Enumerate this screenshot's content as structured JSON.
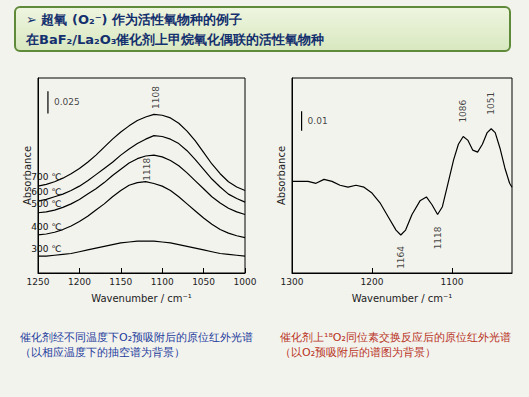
{
  "slide_title": [
    "➢ 超氧 (O₂⁻) 作为活性氧物种的例子",
    "在BaF₂/La₂O₃催化剂上甲烷氧化偶联的活性氧物种"
  ],
  "chart_data": [
    {
      "type": "line",
      "x_label": "Wavenumber / cm⁻¹",
      "y_label": "Absorbance",
      "xlim": [
        1250,
        1000
      ],
      "xticks": [
        1250,
        1200,
        1150,
        1100,
        1050,
        1000
      ],
      "ylim": [
        0,
        0.22
      ],
      "tick_labels": "x",
      "color": "#000000",
      "x": [
        1250,
        1240,
        1230,
        1220,
        1210,
        1200,
        1190,
        1180,
        1170,
        1160,
        1150,
        1140,
        1130,
        1120,
        1110,
        1100,
        1090,
        1080,
        1070,
        1060,
        1050,
        1040,
        1030,
        1020,
        1010,
        1000
      ],
      "series": [
        {
          "name": "700 ℃",
          "values": [
            0.098,
            0.1,
            0.103,
            0.107,
            0.112,
            0.118,
            0.125,
            0.133,
            0.142,
            0.151,
            0.159,
            0.166,
            0.172,
            0.176,
            0.179,
            0.178,
            0.175,
            0.169,
            0.16,
            0.149,
            0.136,
            0.123,
            0.112,
            0.103,
            0.097,
            0.093
          ]
        },
        {
          "name": "600 ℃",
          "values": [
            0.081,
            0.083,
            0.086,
            0.089,
            0.093,
            0.098,
            0.104,
            0.111,
            0.118,
            0.125,
            0.133,
            0.14,
            0.146,
            0.151,
            0.155,
            0.154,
            0.151,
            0.146,
            0.138,
            0.128,
            0.117,
            0.106,
            0.097,
            0.089,
            0.084,
            0.08
          ]
        },
        {
          "name": "500 ℃",
          "values": [
            0.068,
            0.069,
            0.071,
            0.074,
            0.078,
            0.083,
            0.089,
            0.095,
            0.102,
            0.11,
            0.117,
            0.124,
            0.129,
            0.132,
            0.133,
            0.131,
            0.127,
            0.121,
            0.113,
            0.104,
            0.095,
            0.086,
            0.079,
            0.073,
            0.069,
            0.066
          ]
        },
        {
          "name": "400 ℃",
          "values": [
            0.043,
            0.044,
            0.046,
            0.049,
            0.053,
            0.058,
            0.064,
            0.071,
            0.078,
            0.086,
            0.093,
            0.099,
            0.102,
            0.103,
            0.101,
            0.098,
            0.093,
            0.086,
            0.078,
            0.07,
            0.062,
            0.055,
            0.049,
            0.045,
            0.042,
            0.04
          ]
        },
        {
          "name": "300 ℃",
          "values": [
            0.019,
            0.019,
            0.02,
            0.021,
            0.022,
            0.024,
            0.026,
            0.028,
            0.03,
            0.032,
            0.034,
            0.035,
            0.036,
            0.036,
            0.036,
            0.035,
            0.034,
            0.032,
            0.03,
            0.028,
            0.026,
            0.024,
            0.022,
            0.021,
            0.02,
            0.019
          ]
        }
      ],
      "annotations": [
        {
          "label": "1108",
          "x": 1108,
          "y": 0.198
        },
        {
          "label": "1118",
          "x": 1118,
          "y": 0.117
        }
      ],
      "scale_bar": {
        "label": "0.025",
        "length": 0.025,
        "x": 1238,
        "y": 0.18
      },
      "caption": "催化剂经不同温度下O₂预吸附后的原位红外光谱（以相应温度下的抽空谱为背景）"
    },
    {
      "type": "line",
      "x_label": "Wavenumber / cm⁻¹",
      "y_label": "Absorbance",
      "xlim": [
        1300,
        1025
      ],
      "xticks": [
        1300,
        1200,
        1100
      ],
      "ylim": [
        0,
        0.1
      ],
      "tick_labels": "x",
      "color": "#000000",
      "x": [
        1300,
        1290,
        1280,
        1270,
        1260,
        1250,
        1240,
        1230,
        1220,
        1210,
        1200,
        1190,
        1180,
        1170,
        1164,
        1158,
        1150,
        1140,
        1132,
        1125,
        1118,
        1112,
        1105,
        1098,
        1092,
        1086,
        1080,
        1074,
        1068,
        1062,
        1056,
        1051,
        1046,
        1040,
        1034,
        1028,
        1025
      ],
      "values": [
        0.047,
        0.047,
        0.047,
        0.046,
        0.048,
        0.047,
        0.045,
        0.044,
        0.045,
        0.044,
        0.041,
        0.036,
        0.029,
        0.022,
        0.0195,
        0.022,
        0.03,
        0.037,
        0.039,
        0.035,
        0.03,
        0.034,
        0.046,
        0.058,
        0.066,
        0.07,
        0.068,
        0.063,
        0.062,
        0.066,
        0.072,
        0.074,
        0.072,
        0.064,
        0.054,
        0.046,
        0.044
      ],
      "annotations": [
        {
          "label": "1164",
          "x": 1164,
          "y": 0.008
        },
        {
          "label": "1118",
          "x": 1118,
          "y": 0.018
        },
        {
          "label": "1086",
          "x": 1086,
          "y": 0.083
        },
        {
          "label": "1051",
          "x": 1051,
          "y": 0.087
        }
      ],
      "scale_bar": {
        "label": "0.01",
        "length": 0.01,
        "x": 1288,
        "y": 0.073
      },
      "caption": "催化剂上¹⁸O₂同位素交换反应后的原位红外光谱（以O₂预吸附后的谱图为背景）"
    }
  ]
}
